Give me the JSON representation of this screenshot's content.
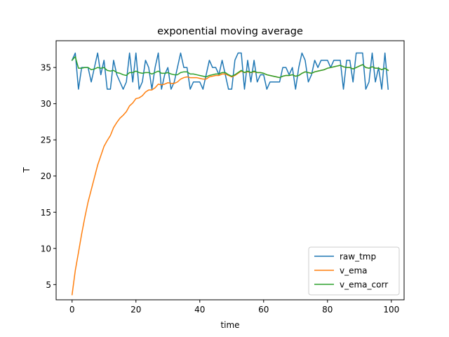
{
  "chart_data": {
    "type": "line",
    "title": "exponential moving average",
    "xlabel": "time",
    "ylabel": "T",
    "xlim": [
      -5,
      104
    ],
    "ylim": [
      2.9,
      38.7
    ],
    "xticks": [
      0,
      20,
      40,
      60,
      80,
      100
    ],
    "yticks": [
      5,
      10,
      15,
      20,
      25,
      30,
      35
    ],
    "grid": false,
    "legend_position": "lower right",
    "series": [
      {
        "name": "raw_tmp",
        "color": "#1f77b4",
        "x": [
          0,
          1,
          2,
          3,
          4,
          5,
          6,
          7,
          8,
          9,
          10,
          11,
          12,
          13,
          14,
          15,
          16,
          17,
          18,
          19,
          20,
          21,
          22,
          23,
          24,
          25,
          26,
          27,
          28,
          29,
          30,
          31,
          32,
          33,
          34,
          35,
          36,
          37,
          38,
          39,
          40,
          41,
          42,
          43,
          44,
          45,
          46,
          47,
          48,
          49,
          50,
          51,
          52,
          53,
          54,
          55,
          56,
          57,
          58,
          59,
          60,
          61,
          62,
          63,
          64,
          65,
          66,
          67,
          68,
          69,
          70,
          71,
          72,
          73,
          74,
          75,
          76,
          77,
          78,
          79,
          80,
          81,
          82,
          83,
          84,
          85,
          86,
          87,
          88,
          89,
          90,
          91,
          92,
          93,
          94,
          95,
          96,
          97,
          98,
          99
        ],
        "y": [
          36,
          37,
          32,
          35,
          35,
          35,
          33,
          35,
          37,
          34,
          36,
          32,
          32,
          36,
          34,
          33,
          32,
          33,
          37,
          33,
          37,
          32,
          33,
          36,
          35,
          32,
          35,
          37,
          32,
          34,
          35,
          32,
          33,
          35,
          37,
          35,
          35,
          32,
          33,
          33,
          33,
          32,
          34,
          36,
          35,
          35,
          34,
          36,
          34,
          32,
          32,
          36,
          37,
          37,
          32,
          36,
          33,
          36,
          33,
          34,
          34,
          32,
          33,
          33,
          33,
          33,
          35,
          35,
          34,
          35,
          32,
          35,
          37,
          36,
          33,
          34,
          36,
          35,
          36,
          36,
          36,
          35,
          36,
          36,
          36,
          32,
          36,
          36,
          33,
          37,
          37,
          37,
          32,
          33,
          37,
          33,
          35,
          32,
          37,
          32
        ]
      },
      {
        "name": "v_ema",
        "color": "#ff7f0e",
        "x": [
          0,
          1,
          2,
          3,
          4,
          5,
          6,
          7,
          8,
          9,
          10,
          11,
          12,
          13,
          14,
          15,
          16,
          17,
          18,
          19,
          20,
          21,
          22,
          23,
          24,
          25,
          26,
          27,
          28,
          29,
          30,
          31,
          32,
          33,
          34,
          35,
          36,
          37,
          38,
          39,
          40,
          41,
          42,
          43,
          44,
          45,
          46,
          47,
          48,
          49,
          50,
          51,
          52,
          53,
          54,
          55,
          56,
          57,
          58,
          59,
          60,
          61,
          62,
          63,
          64,
          65,
          66,
          67,
          68,
          69,
          70,
          71,
          72,
          73,
          74,
          75,
          76,
          77,
          78,
          79,
          80,
          81,
          82,
          83,
          84,
          85,
          86,
          87,
          88,
          89,
          90,
          91,
          92,
          93,
          94,
          95,
          96,
          97,
          98,
          99
        ],
        "y": [
          3.6,
          6.94,
          9.44,
          12.0,
          14.3,
          16.4,
          18.1,
          19.8,
          21.5,
          22.8,
          24.1,
          24.9,
          25.6,
          26.7,
          27.4,
          28.0,
          28.4,
          28.9,
          29.7,
          30.1,
          30.7,
          30.8,
          31.1,
          31.6,
          31.9,
          31.9,
          32.2,
          32.7,
          32.6,
          32.7,
          32.9,
          32.8,
          32.8,
          33.0,
          33.4,
          33.6,
          33.7,
          33.6,
          33.6,
          33.6,
          33.5,
          33.4,
          33.4,
          33.7,
          33.8,
          33.9,
          33.9,
          34.1,
          34.1,
          33.9,
          33.7,
          33.9,
          34.2,
          34.5,
          34.3,
          34.4,
          34.3,
          34.4,
          34.3,
          34.3,
          34.2,
          34.0,
          33.9,
          33.8,
          33.7,
          33.6,
          33.8,
          33.9,
          33.9,
          34.0,
          33.8,
          33.9,
          34.2,
          34.4,
          34.3,
          34.2,
          34.4,
          34.5,
          34.6,
          34.7,
          34.9,
          35.0,
          35.1,
          35.2,
          35.3,
          35.1,
          35.0,
          35.0,
          34.8,
          35.0,
          35.2,
          35.4,
          35.0,
          34.9,
          35.1,
          34.9,
          34.9,
          34.7,
          34.9,
          34.6
        ]
      },
      {
        "name": "v_ema_corr",
        "color": "#2ca02c",
        "x": [
          0,
          1,
          2,
          3,
          4,
          5,
          6,
          7,
          8,
          9,
          10,
          11,
          12,
          13,
          14,
          15,
          16,
          17,
          18,
          19,
          20,
          21,
          22,
          23,
          24,
          25,
          26,
          27,
          28,
          29,
          30,
          31,
          32,
          33,
          34,
          35,
          36,
          37,
          38,
          39,
          40,
          41,
          42,
          43,
          44,
          45,
          46,
          47,
          48,
          49,
          50,
          51,
          52,
          53,
          54,
          55,
          56,
          57,
          58,
          59,
          60,
          61,
          62,
          63,
          64,
          65,
          66,
          67,
          68,
          69,
          70,
          71,
          72,
          73,
          74,
          75,
          76,
          77,
          78,
          79,
          80,
          81,
          82,
          83,
          84,
          85,
          86,
          87,
          88,
          89,
          90,
          91,
          92,
          93,
          94,
          95,
          96,
          97,
          98,
          99
        ],
        "y": [
          36.0,
          36.5,
          34.9,
          34.9,
          35.0,
          35.0,
          34.7,
          34.8,
          35.0,
          34.9,
          35.0,
          34.6,
          34.5,
          34.6,
          34.3,
          34.2,
          34.0,
          33.9,
          34.3,
          34.3,
          34.5,
          34.3,
          34.2,
          34.3,
          34.3,
          34.1,
          34.3,
          34.5,
          34.2,
          34.2,
          34.3,
          34.1,
          34.0,
          34.0,
          34.3,
          34.4,
          34.4,
          34.1,
          34.1,
          34.0,
          33.9,
          33.8,
          33.7,
          33.9,
          34.0,
          34.1,
          34.1,
          34.3,
          34.3,
          34.0,
          33.8,
          34.0,
          34.3,
          34.6,
          34.3,
          34.5,
          34.3,
          34.5,
          34.3,
          34.3,
          34.2,
          34.0,
          33.9,
          33.8,
          33.7,
          33.6,
          33.8,
          33.9,
          33.9,
          34.0,
          33.8,
          33.9,
          34.2,
          34.4,
          34.3,
          34.2,
          34.4,
          34.5,
          34.6,
          34.7,
          34.9,
          35.0,
          35.1,
          35.2,
          35.3,
          35.1,
          35.0,
          35.0,
          34.8,
          35.0,
          35.2,
          35.4,
          35.0,
          34.9,
          35.1,
          34.9,
          34.9,
          34.7,
          34.9,
          34.6
        ]
      }
    ]
  }
}
